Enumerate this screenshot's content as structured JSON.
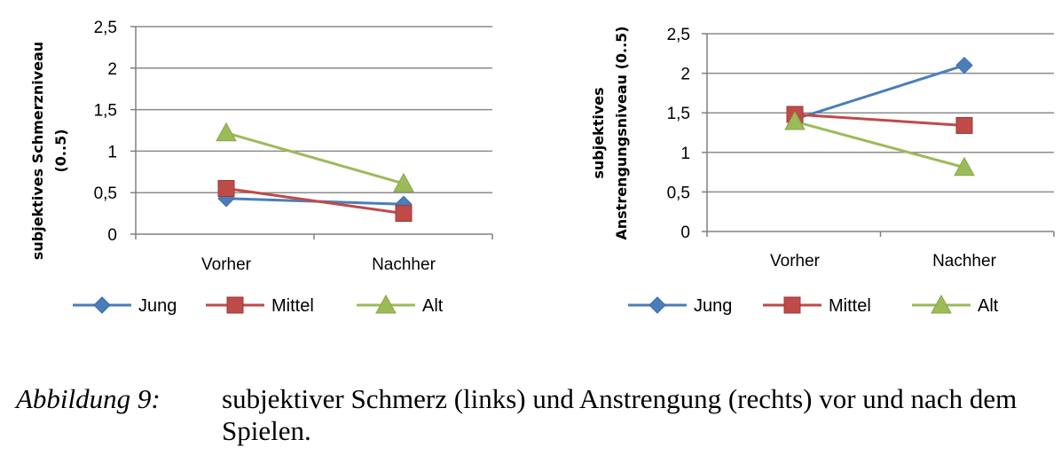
{
  "chart_data": [
    {
      "type": "line",
      "categories": [
        "Vorher",
        "Nachher"
      ],
      "series": [
        {
          "name": "Jung",
          "values": [
            0.43,
            0.36
          ],
          "color": "#4a7ebb",
          "marker": "diamond"
        },
        {
          "name": "Mittel",
          "values": [
            0.55,
            0.25
          ],
          "color": "#be4b48",
          "marker": "square"
        },
        {
          "name": "Alt",
          "values": [
            1.22,
            0.61
          ],
          "color": "#9bbb59",
          "marker": "triangle"
        }
      ],
      "ylabel_lines": [
        "subjektives Schmerzniveau",
        "(0..5)"
      ],
      "ylim": [
        0,
        2.5
      ],
      "yticks": [
        "0",
        "0,5",
        "1",
        "1,5",
        "2",
        "2,5"
      ],
      "grid": true,
      "legend": "bottom"
    },
    {
      "type": "line",
      "categories": [
        "Vorher",
        "Nachher"
      ],
      "series": [
        {
          "name": "Jung",
          "values": [
            1.42,
            2.1
          ],
          "color": "#4a7ebb",
          "marker": "diamond"
        },
        {
          "name": "Mittel",
          "values": [
            1.48,
            1.34
          ],
          "color": "#be4b48",
          "marker": "square"
        },
        {
          "name": "Alt",
          "values": [
            1.39,
            0.81
          ],
          "color": "#9bbb59",
          "marker": "triangle"
        }
      ],
      "ylabel_lines": [
        "subjektives",
        "Anstrengungsniveau (0..5)"
      ],
      "ylim": [
        0,
        2.5
      ],
      "yticks": [
        "0",
        "0,5",
        "1",
        "1,5",
        "2",
        "2,5"
      ],
      "grid": true,
      "legend": "bottom"
    }
  ],
  "caption": {
    "label": "Abbildung 9:",
    "text": "subjektiver Schmerz (links) und Anstrengung (rechts) vor und nach dem Spielen."
  }
}
